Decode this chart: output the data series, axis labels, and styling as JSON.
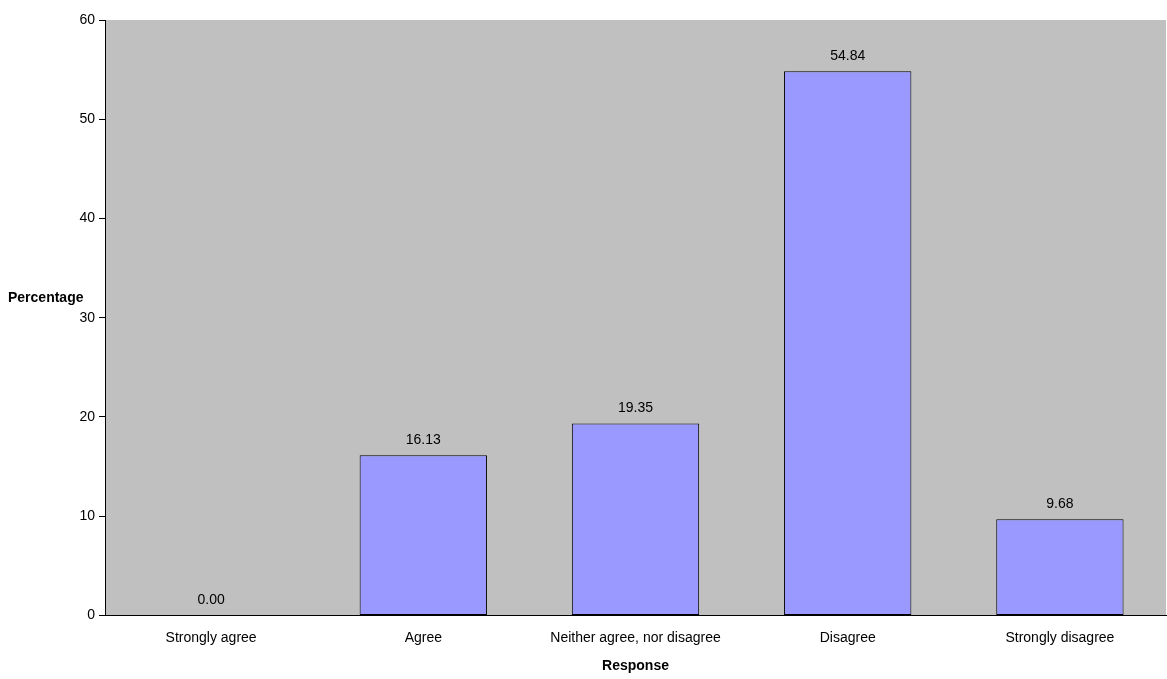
{
  "chart_data": {
    "type": "bar",
    "xlabel": "Response",
    "ylabel": "Percentage",
    "categories": [
      "Strongly agree",
      "Agree",
      "Neither agree, nor disagree",
      "Disagree",
      "Strongly disagree"
    ],
    "values": [
      0,
      16.13,
      19.35,
      54.84,
      9.68
    ],
    "value_labels": [
      "0.00",
      "16.13",
      "19.35",
      "54.84",
      "9.68"
    ],
    "color": "#9999ff",
    "ylim": [
      0,
      60
    ],
    "yticks": [
      0,
      10,
      20,
      30,
      40,
      50,
      60
    ],
    "grid": false,
    "legend": false
  }
}
